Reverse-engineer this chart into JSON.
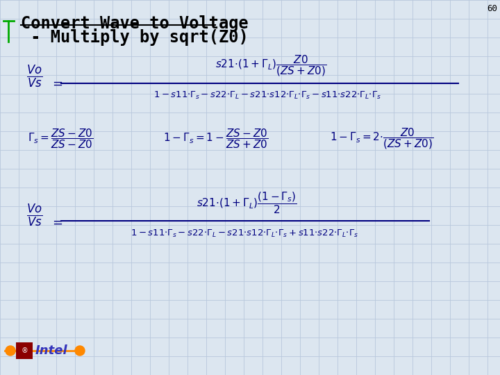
{
  "title_line1": "Convert Wave to Voltage",
  "title_line2": " - Multiply by sqrt(Z0)",
  "bg_color": "#dce6f0",
  "grid_color": "#b8c8dc",
  "title_color": "#000000",
  "eq_color": "#000080",
  "slide_number": "60",
  "title_fontsize": 17,
  "eq_fontsize": 11,
  "small_fontsize": 9.5
}
